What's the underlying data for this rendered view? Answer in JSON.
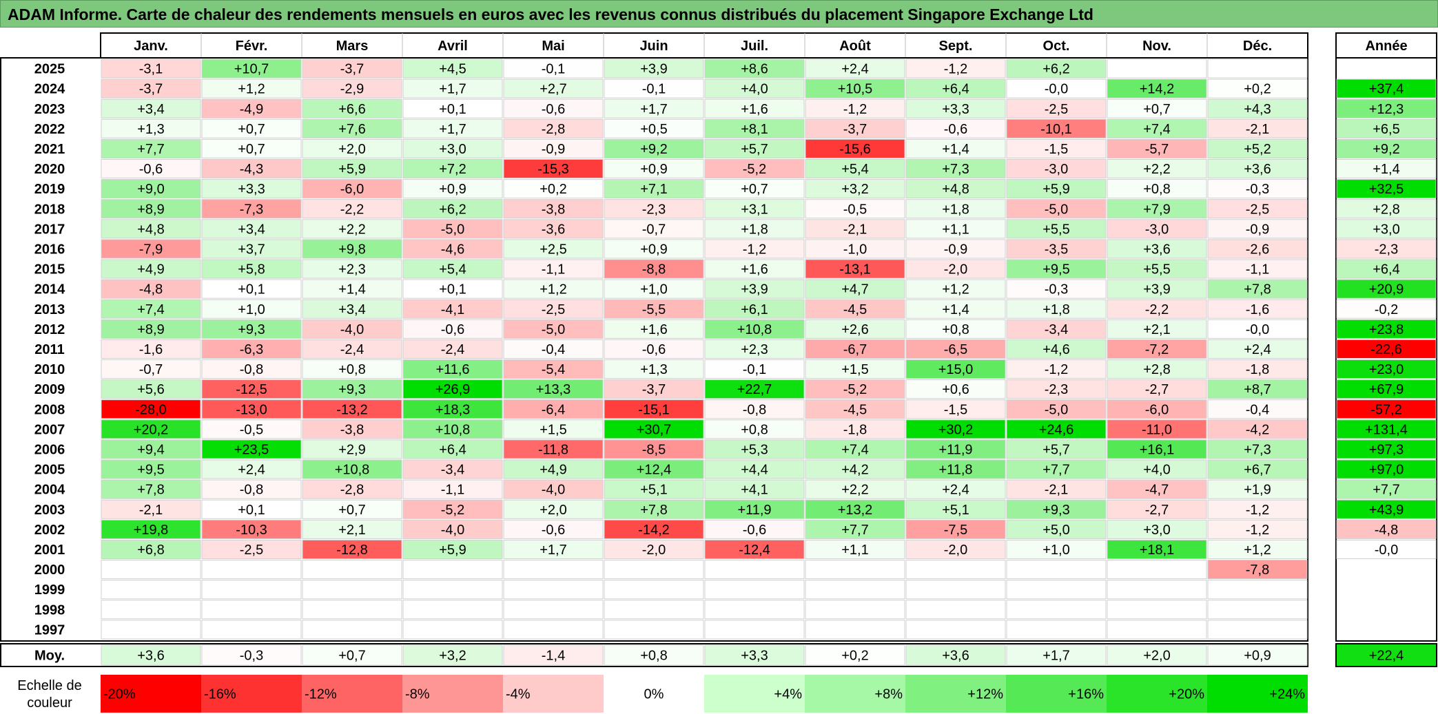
{
  "title": "ADAM Informe. Carte de chaleur des rendements mensuels en euros avec les revenus connus distribués du placement Singapore Exchange Ltd",
  "chart_data": {
    "type": "heatmap",
    "columns": [
      "Janv.",
      "Févr.",
      "Mars",
      "Avril",
      "Mai",
      "Juin",
      "Juil.",
      "Août",
      "Sept.",
      "Oct.",
      "Nov.",
      "Déc."
    ],
    "annual_label": "Année",
    "rows": [
      {
        "year": "2025",
        "values": [
          "-3,1",
          "+10,7",
          "-3,7",
          "+4,5",
          "-0,1",
          "+3,9",
          "+8,6",
          "+2,4",
          "-1,2",
          "+6,2",
          "",
          ""
        ],
        "annual": ""
      },
      {
        "year": "2024",
        "values": [
          "-3,7",
          "+1,2",
          "-2,9",
          "+1,7",
          "+2,7",
          "-0,1",
          "+4,0",
          "+10,5",
          "+6,4",
          "-0,0",
          "+14,2",
          "+0,2"
        ],
        "annual": "+37,4"
      },
      {
        "year": "2023",
        "values": [
          "+3,4",
          "-4,9",
          "+6,6",
          "+0,1",
          "-0,6",
          "+1,7",
          "+1,6",
          "-1,2",
          "+3,3",
          "-2,5",
          "+0,7",
          "+4,3"
        ],
        "annual": "+12,3"
      },
      {
        "year": "2022",
        "values": [
          "+1,3",
          "+0,7",
          "+7,6",
          "+1,7",
          "-2,8",
          "+0,5",
          "+8,1",
          "-3,7",
          "-0,6",
          "-10,1",
          "+7,4",
          "-2,1"
        ],
        "annual": "+6,5"
      },
      {
        "year": "2021",
        "values": [
          "+7,7",
          "+0,7",
          "+2,0",
          "+3,0",
          "-0,9",
          "+9,2",
          "+5,7",
          "-15,6",
          "+1,4",
          "-1,5",
          "-5,7",
          "+5,2"
        ],
        "annual": "+9,2"
      },
      {
        "year": "2020",
        "values": [
          "-0,6",
          "-4,3",
          "+5,9",
          "+7,2",
          "-15,3",
          "+0,9",
          "-5,2",
          "+5,4",
          "+7,3",
          "-3,0",
          "+2,2",
          "+3,6"
        ],
        "annual": "+1,4"
      },
      {
        "year": "2019",
        "values": [
          "+9,0",
          "+3,3",
          "-6,0",
          "+0,9",
          "+0,2",
          "+7,1",
          "+0,7",
          "+3,2",
          "+4,8",
          "+5,9",
          "+0,8",
          "-0,3"
        ],
        "annual": "+32,5"
      },
      {
        "year": "2018",
        "values": [
          "+8,9",
          "-7,3",
          "-2,2",
          "+6,2",
          "-3,8",
          "-2,3",
          "+3,1",
          "-0,5",
          "+1,8",
          "-5,0",
          "+7,9",
          "-2,5"
        ],
        "annual": "+2,8"
      },
      {
        "year": "2017",
        "values": [
          "+4,8",
          "+3,4",
          "+2,2",
          "-5,0",
          "-3,6",
          "-0,7",
          "+1,8",
          "-2,1",
          "+1,1",
          "+5,5",
          "-3,0",
          "-0,9"
        ],
        "annual": "+3,0"
      },
      {
        "year": "2016",
        "values": [
          "-7,9",
          "+3,7",
          "+9,8",
          "-4,6",
          "+2,5",
          "+0,9",
          "-1,2",
          "-1,0",
          "-0,9",
          "-3,5",
          "+3,6",
          "-2,6"
        ],
        "annual": "-2,3"
      },
      {
        "year": "2015",
        "values": [
          "+4,9",
          "+5,8",
          "+2,3",
          "+5,4",
          "-1,1",
          "-8,8",
          "+1,6",
          "-13,1",
          "-2,0",
          "+9,5",
          "+5,5",
          "-1,1"
        ],
        "annual": "+6,4"
      },
      {
        "year": "2014",
        "values": [
          "-4,8",
          "+0,1",
          "+1,4",
          "+0,1",
          "+1,2",
          "+1,0",
          "+3,9",
          "+4,7",
          "+1,2",
          "-0,3",
          "+3,9",
          "+7,8"
        ],
        "annual": "+20,9"
      },
      {
        "year": "2013",
        "values": [
          "+7,4",
          "+1,0",
          "+3,4",
          "-4,1",
          "-2,5",
          "-5,5",
          "+6,1",
          "-4,5",
          "+1,4",
          "+1,8",
          "-2,2",
          "-1,6"
        ],
        "annual": "-0,2"
      },
      {
        "year": "2012",
        "values": [
          "+8,9",
          "+9,3",
          "-4,0",
          "-0,6",
          "-5,0",
          "+1,6",
          "+10,8",
          "+2,6",
          "+0,8",
          "-3,4",
          "+2,1",
          "-0,0"
        ],
        "annual": "+23,8"
      },
      {
        "year": "2011",
        "values": [
          "-1,6",
          "-6,3",
          "-2,4",
          "-2,4",
          "-0,4",
          "-0,6",
          "+2,3",
          "-6,7",
          "-6,5",
          "+4,6",
          "-7,2",
          "+2,4"
        ],
        "annual": "-22,6"
      },
      {
        "year": "2010",
        "values": [
          "-0,7",
          "-0,8",
          "+0,8",
          "+11,6",
          "-5,4",
          "+1,3",
          "-0,1",
          "+1,5",
          "+15,0",
          "-1,2",
          "+2,8",
          "-1,8"
        ],
        "annual": "+23,0"
      },
      {
        "year": "2009",
        "values": [
          "+5,6",
          "-12,5",
          "+9,3",
          "+26,9",
          "+13,3",
          "-3,7",
          "+22,7",
          "-5,2",
          "+0,6",
          "-2,3",
          "-2,7",
          "+8,7"
        ],
        "annual": "+67,9"
      },
      {
        "year": "2008",
        "values": [
          "-28,0",
          "-13,0",
          "-13,2",
          "+18,3",
          "-6,4",
          "-15,1",
          "-0,8",
          "-4,5",
          "-1,5",
          "-5,0",
          "-6,0",
          "-0,4"
        ],
        "annual": "-57,2"
      },
      {
        "year": "2007",
        "values": [
          "+20,2",
          "-0,5",
          "-3,8",
          "+10,8",
          "+1,5",
          "+30,7",
          "+0,8",
          "-1,8",
          "+30,2",
          "+24,6",
          "-11,0",
          "-4,2"
        ],
        "annual": "+131,4"
      },
      {
        "year": "2006",
        "values": [
          "+9,4",
          "+23,5",
          "+2,9",
          "+6,4",
          "-11,8",
          "-8,5",
          "+5,3",
          "+7,4",
          "+11,9",
          "+5,7",
          "+16,1",
          "+7,3"
        ],
        "annual": "+97,3"
      },
      {
        "year": "2005",
        "values": [
          "+9,5",
          "+2,4",
          "+10,8",
          "-3,4",
          "+4,9",
          "+12,4",
          "+4,4",
          "+4,2",
          "+11,8",
          "+7,7",
          "+4,0",
          "+6,7"
        ],
        "annual": "+97,0"
      },
      {
        "year": "2004",
        "values": [
          "+7,8",
          "-0,8",
          "-2,8",
          "-1,1",
          "-4,0",
          "+5,1",
          "+4,1",
          "+2,2",
          "+2,4",
          "-2,1",
          "-4,7",
          "+1,9"
        ],
        "annual": "+7,7"
      },
      {
        "year": "2003",
        "values": [
          "-2,1",
          "+0,1",
          "+0,7",
          "-5,2",
          "+2,0",
          "+7,8",
          "+11,9",
          "+13,2",
          "+5,1",
          "+9,3",
          "-2,7",
          "-1,2"
        ],
        "annual": "+43,9"
      },
      {
        "year": "2002",
        "values": [
          "+19,8",
          "-10,3",
          "+2,1",
          "-4,0",
          "-0,6",
          "-14,2",
          "-0,6",
          "+7,7",
          "-7,5",
          "+5,0",
          "+3,0",
          "-1,2"
        ],
        "annual": "-4,8"
      },
      {
        "year": "2001",
        "values": [
          "+6,8",
          "-2,5",
          "-12,8",
          "+5,9",
          "+1,7",
          "-2,0",
          "-12,4",
          "+1,1",
          "-2,0",
          "+1,0",
          "+18,1",
          "+1,2"
        ],
        "annual": "-0,0"
      },
      {
        "year": "2000",
        "values": [
          "",
          "",
          "",
          "",
          "",
          "",
          "",
          "",
          "",
          "",
          "",
          "-7,8"
        ],
        "annual": ""
      },
      {
        "year": "1999",
        "values": [
          "",
          "",
          "",
          "",
          "",
          "",
          "",
          "",
          "",
          "",
          "",
          ""
        ],
        "annual": ""
      },
      {
        "year": "1998",
        "values": [
          "",
          "",
          "",
          "",
          "",
          "",
          "",
          "",
          "",
          "",
          "",
          ""
        ],
        "annual": ""
      },
      {
        "year": "1997",
        "values": [
          "",
          "",
          "",
          "",
          "",
          "",
          "",
          "",
          "",
          "",
          "",
          ""
        ],
        "annual": ""
      }
    ],
    "average": {
      "label": "Moy.",
      "values": [
        "+3,6",
        "-0,3",
        "+0,7",
        "+3,2",
        "-1,4",
        "+0,8",
        "+3,3",
        "+0,2",
        "+3,6",
        "+1,7",
        "+2,0",
        "+0,9"
      ],
      "annual": "+22,4"
    },
    "scale": {
      "label_line1": "Echelle de",
      "label_line2": "couleur",
      "items": [
        {
          "label": "-20%",
          "value": -20,
          "color": "#ff0000"
        },
        {
          "label": "-16%",
          "value": -16,
          "color": "#ff3232"
        },
        {
          "label": "-12%",
          "value": -12,
          "color": "#ff6464"
        },
        {
          "label": "-8%",
          "value": -8,
          "color": "#ff9696"
        },
        {
          "label": "-4%",
          "value": -4,
          "color": "#ffcaca"
        },
        {
          "label": "0%",
          "value": 0,
          "color": "#ffffff"
        },
        {
          "label": "+4%",
          "value": 4,
          "color": "#ccffcc"
        },
        {
          "label": "+8%",
          "value": 8,
          "color": "#a6f8a6"
        },
        {
          "label": "+12%",
          "value": 12,
          "color": "#80f080"
        },
        {
          "label": "+16%",
          "value": 16,
          "color": "#55ea55"
        },
        {
          "label": "+20%",
          "value": 20,
          "color": "#2ae42a"
        },
        {
          "label": "+24%",
          "value": 24,
          "color": "#00dd00"
        }
      ]
    }
  }
}
